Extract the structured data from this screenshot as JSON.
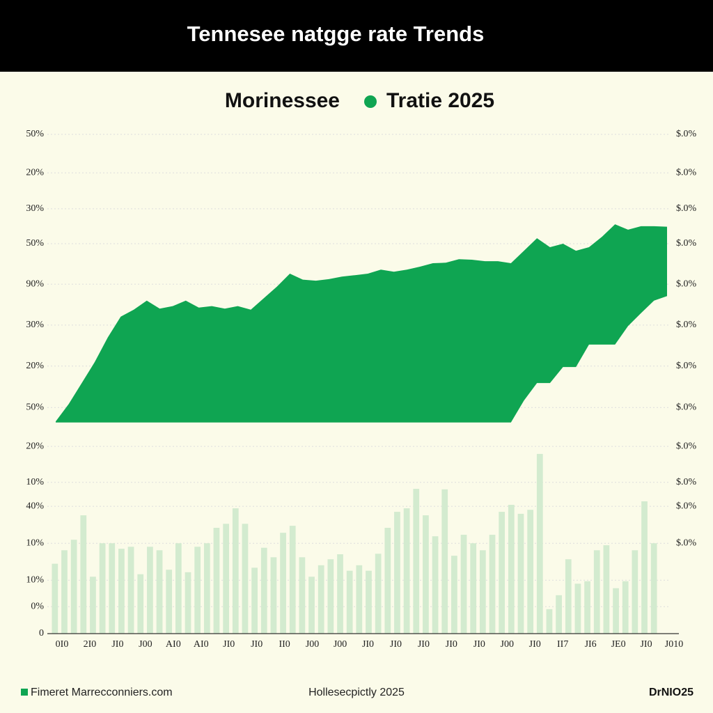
{
  "chart_data": {
    "type": "combo",
    "title": "Tennesee natgge rate Trends",
    "subtitle": "Morinessee",
    "ylim": [
      0,
      100
    ],
    "yticks": [
      {
        "value": 100,
        "label": "50%"
      },
      {
        "value": 92.3,
        "label": "20%"
      },
      {
        "value": 85.1,
        "label": "30%"
      },
      {
        "value": 78.1,
        "label": "50%"
      },
      {
        "value": 70,
        "label": "90%"
      },
      {
        "value": 61.8,
        "label": "30%"
      },
      {
        "value": 53.6,
        "label": "20%"
      },
      {
        "value": 45.3,
        "label": "50%"
      },
      {
        "value": 37.5,
        "label": "20%"
      },
      {
        "value": 30.3,
        "label": "10%"
      },
      {
        "value": 25.5,
        "label": "40%"
      },
      {
        "value": 18.1,
        "label": "10%"
      },
      {
        "value": 10.7,
        "label": "10%"
      },
      {
        "value": 5.4,
        "label": "0%"
      },
      0
    ],
    "y2lim": [
      0,
      100
    ],
    "y2ticks": [
      {
        "value": 100,
        "label": "$.0%"
      },
      {
        "value": 92.3,
        "label": "$.0%"
      },
      {
        "value": 85.1,
        "label": "$.0%"
      },
      {
        "value": 78.1,
        "label": "$.0%"
      },
      {
        "value": 70,
        "label": "$.0%"
      },
      {
        "value": 61.8,
        "label": "$.0%"
      },
      {
        "value": 53.6,
        "label": "$.0%"
      },
      {
        "value": 45.3,
        "label": "$.0%"
      },
      {
        "value": 37.5,
        "label": "$.0%"
      },
      {
        "value": 30.3,
        "label": "$.0%"
      },
      {
        "value": 25.5,
        "label": "$.0%"
      },
      {
        "value": 18.1,
        "label": "$.0%"
      }
    ],
    "x_labels": [
      "0I0",
      "2I0",
      "JI0",
      "J00",
      "AI0",
      "AI0",
      "JI0",
      "JI0",
      "II0",
      "J00",
      "J00",
      "JI0",
      "JI0",
      "JI0",
      "JI0",
      "JI0",
      "J00",
      "JI0",
      "II7",
      "JI6",
      "JE0",
      "JI0",
      "J010"
    ],
    "grid": true,
    "series": [
      {
        "name": "Tratie 2025",
        "type": "area",
        "color": "#0fa552",
        "values": [
          42.5,
          46,
          50.2,
          54.4,
          59.3,
          63.5,
          64.9,
          66.7,
          65.1,
          65.6,
          66.7,
          65.3,
          65.6,
          65.1,
          65.6,
          64.9,
          67.2,
          69.5,
          72.1,
          70.9,
          70.7,
          71,
          71.5,
          71.8,
          72.1,
          72.9,
          72.5,
          72.9,
          73.5,
          74.2,
          74.3,
          75,
          74.9,
          74.6,
          74.6,
          74.2,
          76.7,
          79.2,
          77.4,
          78.1,
          76.7,
          77.4,
          79.5,
          82,
          80.9,
          81.6,
          81.6,
          81.5
        ],
        "low_values": [
          42.3,
          42.3,
          42.3,
          42.3,
          42.3,
          42.3,
          42.3,
          42.3,
          42.3,
          42.3,
          42.3,
          42.3,
          42.3,
          42.3,
          42.3,
          42.3,
          42.3,
          42.3,
          42.3,
          42.3,
          42.3,
          42.3,
          42.3,
          42.3,
          42.3,
          42.3,
          42.3,
          42.3,
          42.3,
          42.3,
          42.3,
          42.3,
          42.3,
          42.3,
          42.3,
          42.3,
          46.7,
          50.2,
          50.2,
          53.4,
          53.4,
          57.9,
          57.9,
          57.9,
          61.6,
          64.2,
          66.7,
          67.6
        ]
      },
      {
        "type": "bar",
        "color": "#d3ebcf",
        "values": [
          14,
          16.7,
          18.8,
          23.7,
          11.4,
          18.1,
          18.1,
          17,
          17.4,
          11.9,
          17.4,
          16.7,
          12.8,
          18.1,
          12.3,
          17.4,
          18.1,
          21.2,
          22,
          25.1,
          22,
          13.2,
          17.2,
          15.3,
          20.2,
          21.6,
          15.3,
          11.4,
          13.7,
          14.9,
          15.9,
          12.6,
          13.7,
          12.6,
          16,
          21.2,
          24.4,
          25.1,
          29,
          23.7,
          19.5,
          28.9,
          15.6,
          19.8,
          18.1,
          16.7,
          19.8,
          24.4,
          25.8,
          24,
          24.8,
          36,
          4.9,
          7.7,
          14.9,
          10,
          10.5,
          16.7,
          17.7,
          9.1,
          10.5,
          16.7,
          26.5,
          18.1
        ]
      }
    ]
  },
  "footer": {
    "source": "Fimeret Marrecconniers.com",
    "center": "Hollesecpictly 2025",
    "right": "DrNIO25"
  }
}
